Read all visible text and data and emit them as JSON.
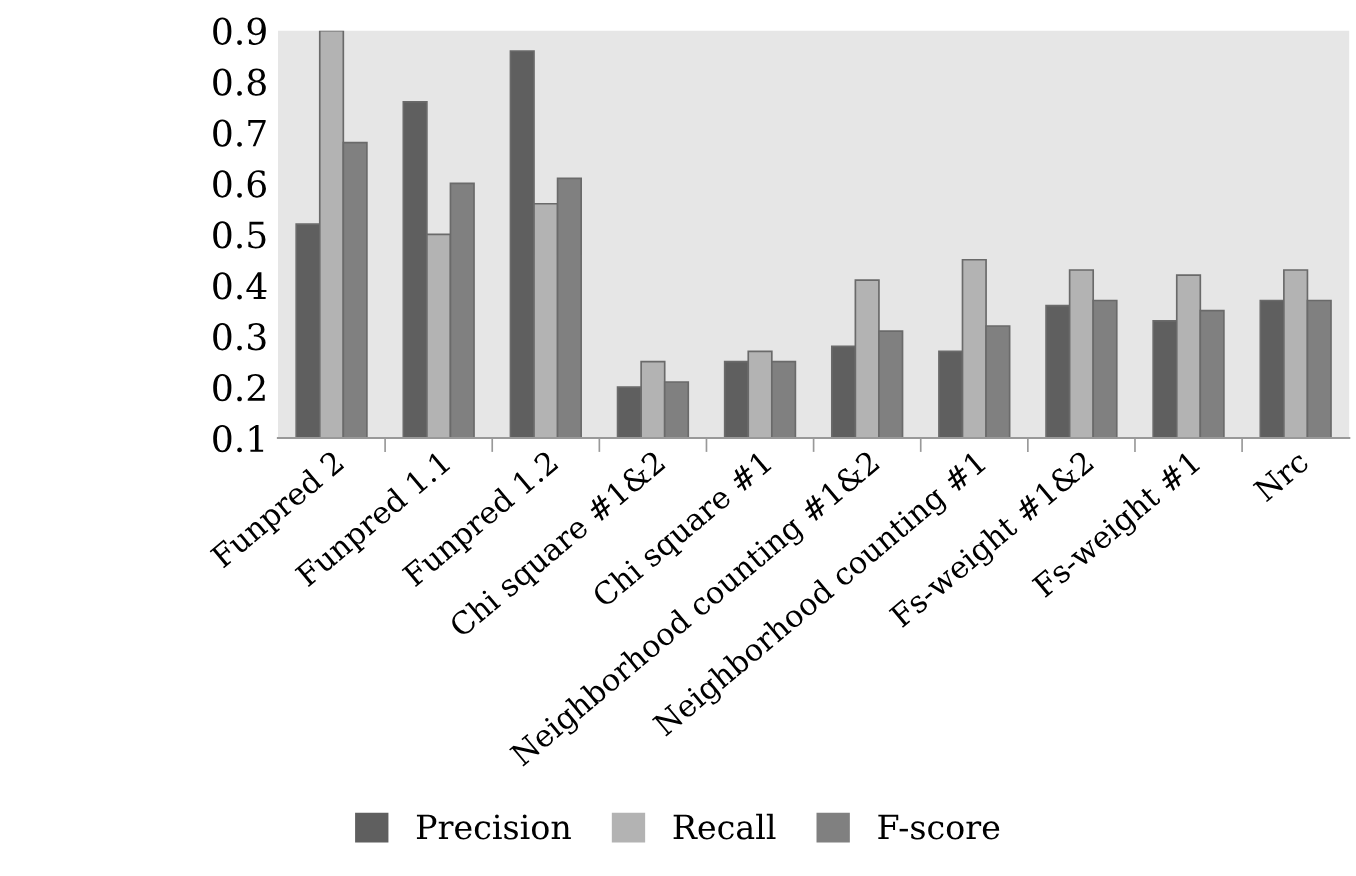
{
  "chart_data": {
    "type": "bar",
    "categories": [
      "Funpred 2",
      "Funpred 1.1",
      "Funpred 1.2",
      "Chi square #1&2",
      "Chi square #1",
      "Neighborhood counting #1&2",
      "Neighborhood counting #1",
      "Fs-weight #1&2",
      "Fs-weight #1",
      "Nrc"
    ],
    "series": [
      {
        "name": "Precision",
        "color": "#5f5f5f",
        "values": [
          0.52,
          0.76,
          0.86,
          0.2,
          0.25,
          0.28,
          0.27,
          0.36,
          0.33,
          0.37
        ]
      },
      {
        "name": "Recall",
        "color": "#b3b3b3",
        "values": [
          0.9,
          0.5,
          0.56,
          0.25,
          0.27,
          0.41,
          0.45,
          0.43,
          0.42,
          0.43
        ]
      },
      {
        "name": "F-score",
        "color": "#808080",
        "values": [
          0.68,
          0.6,
          0.61,
          0.21,
          0.25,
          0.31,
          0.32,
          0.37,
          0.35,
          0.37
        ]
      }
    ],
    "ylim": [
      0.1,
      0.9
    ],
    "yticks": [
      0.1,
      0.2,
      0.3,
      0.4,
      0.5,
      0.6,
      0.7,
      0.8,
      0.9
    ],
    "grid": false,
    "legend": "bottom"
  }
}
